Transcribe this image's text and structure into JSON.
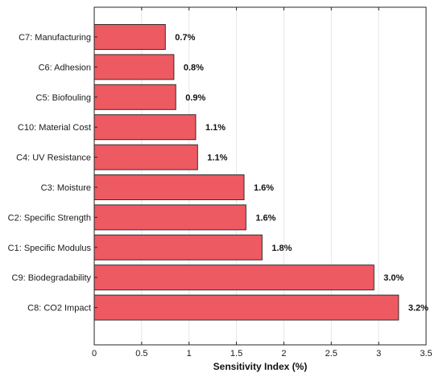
{
  "chart_data": {
    "type": "bar",
    "orientation": "horizontal",
    "categories": [
      "C7: Manufacturing",
      "C6: Adhesion",
      "C5: Biofouling",
      "C10: Material Cost",
      "C4: UV Resistance",
      "C3: Moisture",
      "C2: Specific Strength",
      "C1: Specific Modulus",
      "C9: Biodegradability",
      "C8: CO2 Impact"
    ],
    "values": [
      0.75,
      0.84,
      0.86,
      1.07,
      1.09,
      1.58,
      1.6,
      1.77,
      2.95,
      3.21
    ],
    "value_labels": [
      "0.7%",
      "0.8%",
      "0.9%",
      "1.1%",
      "1.1%",
      "1.6%",
      "1.6%",
      "1.8%",
      "3.0%",
      "3.2%"
    ],
    "xlabel": "Sensitivity Index (%)",
    "ylabel": "",
    "title": "",
    "xlim": [
      0,
      3.5
    ],
    "xticks": [
      "0",
      "0.5",
      "1",
      "1.5",
      "2",
      "2.5",
      "3",
      "3.5"
    ],
    "grid": true,
    "bar_color": "#ee5a62",
    "bar_edge_color": "#3a2a2a"
  }
}
